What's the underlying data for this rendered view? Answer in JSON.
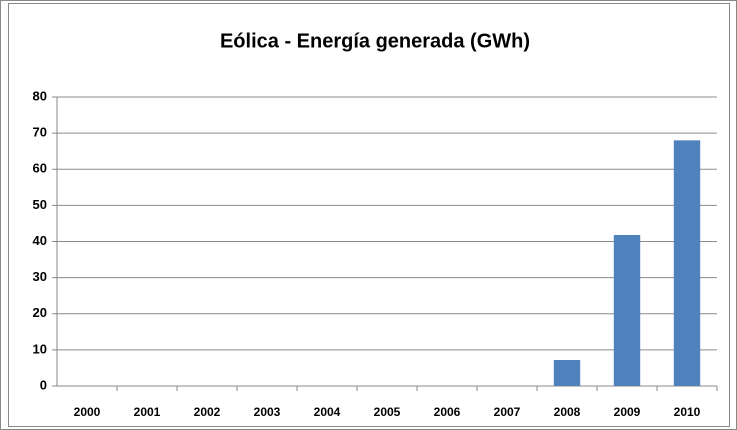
{
  "chart_data": {
    "type": "bar",
    "title": "Eólica - Energía generada (GWh)",
    "categories": [
      "2000",
      "2001",
      "2002",
      "2003",
      "2004",
      "2005",
      "2006",
      "2007",
      "2008",
      "2009",
      "2010"
    ],
    "values": [
      0,
      0,
      0,
      0,
      0,
      0,
      0,
      0,
      7.2,
      41.8,
      68
    ],
    "color": "#4f81bd",
    "ylim": [
      0,
      80
    ],
    "yticks": [
      0,
      10,
      20,
      30,
      40,
      50,
      60,
      70,
      80
    ],
    "grid": true
  }
}
